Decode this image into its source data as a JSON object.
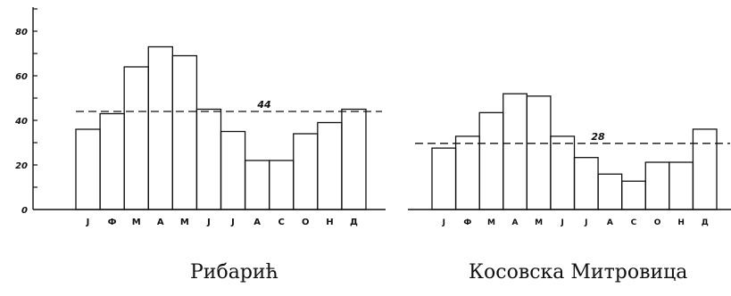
{
  "chart_data": [
    {
      "type": "bar",
      "title": "Рибарић",
      "categories": [
        "J",
        "Ф",
        "M",
        "A",
        "M",
        "J",
        "J",
        "A",
        "C",
        "O",
        "H",
        "Д"
      ],
      "values": [
        36,
        43,
        64,
        73,
        69,
        45,
        35,
        22,
        22,
        34,
        39,
        45
      ],
      "ylim": [
        0,
        90
      ],
      "yticks": [
        0,
        20,
        40,
        60,
        80
      ],
      "ytick_labels": [
        "0",
        "20",
        "40",
        "60",
        "80"
      ],
      "reference_line": {
        "value": 44,
        "label": "44",
        "style": "dashed"
      },
      "grid": false
    },
    {
      "type": "bar",
      "title": "Косовска Митровица",
      "categories": [
        "J",
        "Ф",
        "M",
        "A",
        "M",
        "J",
        "J",
        "A",
        "C",
        "O",
        "H",
        "Д"
      ],
      "values": [
        26,
        31,
        41,
        49,
        48,
        31,
        22,
        15,
        12,
        20,
        20,
        34
      ],
      "ylim": [
        0,
        60
      ],
      "reference_line": {
        "value": 28,
        "label": "28",
        "style": "dashed"
      },
      "grid": false
    }
  ],
  "colors": {
    "ink": "#111111",
    "background": "#ffffff"
  }
}
